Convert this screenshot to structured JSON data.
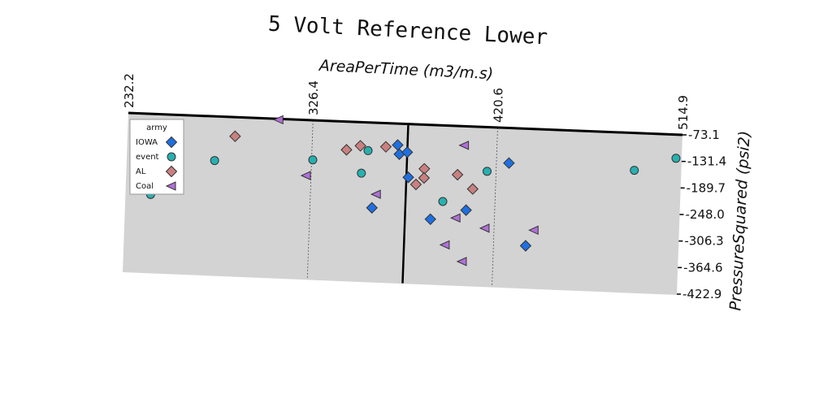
{
  "chart_data": {
    "type": "scatter",
    "title": "5 Volt Reference Lower",
    "xlabel": "AreaPerTime (m3/m.s)",
    "ylabel": "PressureSquared (psi2)",
    "xlim": [
      232.2,
      514.9
    ],
    "ylim": [
      -422.9,
      -73.1
    ],
    "x_ticks": [
      "232.2",
      "326.4",
      "420.6",
      "514.9"
    ],
    "y_ticks": [
      "-73.1",
      "-131.4",
      "-189.7",
      "-248.0",
      "-306.3",
      "-364.6",
      "-422.9"
    ],
    "x_axis_position": "top",
    "y_axis_position": "right",
    "grid": "vertical dotted lines at x ticks",
    "vertical_line_x": 375,
    "legend": {
      "title": "army",
      "placement": "top-left"
    },
    "series": [
      {
        "name": "IOWA",
        "marker": "diamond",
        "color": "#1f6fe0",
        "points": [
          [
            370,
            -120
          ],
          [
            371,
            -140
          ],
          [
            375,
            -135
          ],
          [
            427,
            -150
          ],
          [
            376,
            -190
          ],
          [
            358,
            -260
          ],
          [
            388,
            -280
          ],
          [
            406,
            -257
          ],
          [
            437,
            -330
          ]
        ]
      },
      {
        "name": "event",
        "marker": "circle",
        "color": "#28b0b0",
        "points": [
          [
            245,
            -250
          ],
          [
            277,
            -170
          ],
          [
            327,
            -160
          ],
          [
            355,
            -135
          ],
          [
            352,
            -185
          ],
          [
            394,
            -240
          ],
          [
            416,
            -170
          ],
          [
            491,
            -155
          ],
          [
            512,
            -125
          ]
        ]
      },
      {
        "name": "AL",
        "marker": "diamond",
        "color": "#c98080",
        "points": [
          [
            287,
            -115
          ],
          [
            344,
            -135
          ],
          [
            351,
            -125
          ],
          [
            364,
            -125
          ],
          [
            384,
            -170
          ],
          [
            401,
            -180
          ],
          [
            380,
            -205
          ],
          [
            384,
            -190
          ],
          [
            409,
            -210
          ]
        ]
      },
      {
        "name": "Coal",
        "marker": "triangle-left",
        "color": "#b070d8",
        "points": [
          [
            309,
            -75
          ],
          [
            324,
            -195
          ],
          [
            360,
            -230
          ],
          [
            404,
            -115
          ],
          [
            401,
            -275
          ],
          [
            416,
            -295
          ],
          [
            441,
            -295
          ],
          [
            396,
            -335
          ],
          [
            405,
            -370
          ]
        ]
      }
    ]
  }
}
